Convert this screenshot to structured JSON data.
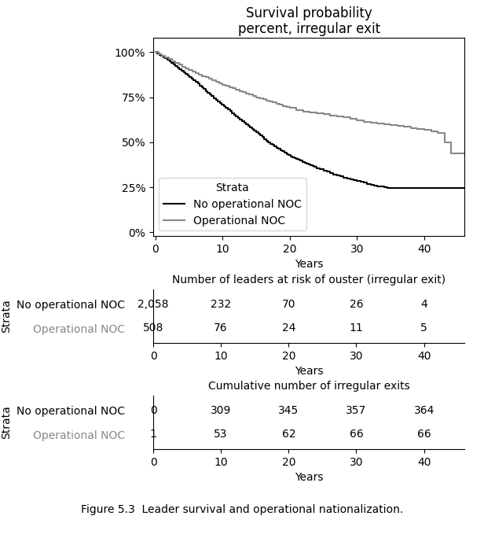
{
  "chart_data": [
    {
      "type": "step",
      "title": "Survival probability\npercent, irregular exit",
      "xlabel": "Years",
      "xlim": [
        -0.3,
        46
      ],
      "ylim": [
        -2,
        108
      ],
      "xticks": [
        0,
        10,
        20,
        30,
        40
      ],
      "yticks": [
        {
          "value": 0,
          "label": "0%"
        },
        {
          "value": 25,
          "label": "25%"
        },
        {
          "value": 50,
          "label": "50%"
        },
        {
          "value": 75,
          "label": "75%"
        },
        {
          "value": 100,
          "label": "100%"
        }
      ],
      "legend": "lower left",
      "legend_title": "Strata",
      "series": [
        {
          "name": "No operational NOC",
          "color": "#000000",
          "x": [
            0,
            0.3,
            0.6,
            0.9,
            1.2,
            1.5,
            1.8,
            2.1,
            2.4,
            2.7,
            3.0,
            3.3,
            3.6,
            3.9,
            4.2,
            4.5,
            4.8,
            5.1,
            5.4,
            5.7,
            6.0,
            6.3,
            6.6,
            6.9,
            7.2,
            7.5,
            7.8,
            8.1,
            8.4,
            8.7,
            9.0,
            9.3,
            9.6,
            9.9,
            10.2,
            10.5,
            10.8,
            11.1,
            11.4,
            11.7,
            12.0,
            12.3,
            12.6,
            12.9,
            13.2,
            13.5,
            13.8,
            14.1,
            14.4,
            14.7,
            15.0,
            15.3,
            15.6,
            15.9,
            16.2,
            16.5,
            16.8,
            17.1,
            17.4,
            17.7,
            18.0,
            18.3,
            18.6,
            18.9,
            19.2,
            19.5,
            19.8,
            20.1,
            20.4,
            20.7,
            21.0,
            21.3,
            21.6,
            21.9,
            22.2,
            22.5,
            22.8,
            23.1,
            23.4,
            23.7,
            24.0,
            24.5,
            25.0,
            25.5,
            26.0,
            26.5,
            27.0,
            27.5,
            28.0,
            28.5,
            29.0,
            29.5,
            30.0,
            30.5,
            31.0,
            31.5,
            32.0,
            32.5,
            33.0,
            33.5,
            34.0,
            34.5,
            35.0,
            36.0,
            37.0,
            38.0,
            39.0,
            40.0,
            41.0,
            42.0,
            43.0,
            44.0,
            45.0,
            46.0
          ],
          "values": [
            100,
            99.3,
            98.6,
            97.9,
            97.2,
            96.5,
            95.7,
            94.9,
            94.1,
            93.3,
            92.5,
            91.6,
            90.7,
            89.8,
            88.9,
            88.0,
            87.1,
            86.2,
            85.3,
            84.4,
            83.5,
            82.5,
            81.5,
            80.5,
            79.5,
            78.5,
            77.5,
            76.5,
            75.5,
            74.5,
            73.5,
            72.6,
            71.7,
            70.8,
            69.9,
            69.0,
            68.1,
            67.2,
            66.3,
            65.4,
            64.5,
            63.6,
            62.7,
            61.8,
            60.9,
            60.0,
            59.1,
            58.2,
            57.3,
            56.4,
            55.5,
            54.6,
            53.7,
            52.8,
            51.9,
            51.0,
            50.1,
            49.2,
            48.5,
            47.8,
            47.1,
            46.4,
            45.7,
            45.0,
            44.3,
            43.6,
            42.9,
            42.2,
            41.7,
            41.2,
            40.7,
            40.2,
            39.7,
            39.2,
            38.7,
            38.2,
            37.7,
            37.2,
            36.7,
            36.2,
            35.7,
            35.0,
            34.3,
            33.6,
            32.9,
            32.2,
            31.5,
            31.0,
            30.5,
            30.0,
            29.5,
            29.0,
            28.5,
            28.0,
            27.5,
            27.0,
            26.5,
            26.0,
            25.7,
            25.4,
            25.1,
            24.8,
            24.5,
            24.5,
            24.5,
            24.5,
            24.5,
            24.5,
            24.5,
            24.5,
            24.5,
            24.5,
            24.5,
            24.5
          ]
        },
        {
          "name": "Operational NOC",
          "color": "#888888",
          "x": [
            0,
            0.5,
            1.0,
            1.5,
            2.0,
            2.5,
            3.0,
            3.5,
            4.0,
            4.5,
            5.0,
            5.5,
            6.0,
            6.5,
            7.0,
            7.5,
            8.0,
            8.5,
            9.0,
            9.5,
            10.0,
            10.5,
            11.0,
            11.5,
            12.0,
            12.5,
            13.0,
            13.5,
            14.0,
            14.5,
            15.0,
            15.5,
            16.0,
            16.5,
            17.0,
            17.5,
            18.0,
            18.5,
            19.0,
            19.5,
            20.0,
            21.0,
            22.0,
            23.0,
            24.0,
            25.0,
            26.0,
            27.0,
            28.0,
            29.0,
            30.0,
            31.0,
            32.0,
            33.0,
            34.0,
            35.0,
            36.0,
            37.0,
            38.0,
            39.0,
            40.0,
            41.0,
            42.0,
            43.0,
            44.0,
            45.0,
            46.0
          ],
          "values": [
            100,
            99.0,
            98.0,
            97.0,
            96.0,
            95.0,
            94.0,
            93.0,
            92.0,
            91.0,
            90.0,
            89.2,
            88.4,
            87.6,
            86.8,
            86.0,
            85.2,
            84.4,
            83.6,
            82.8,
            82.0,
            81.3,
            80.6,
            79.9,
            79.2,
            78.5,
            77.8,
            77.1,
            76.4,
            75.7,
            75.0,
            74.4,
            73.8,
            73.2,
            72.6,
            72.0,
            71.4,
            70.8,
            70.2,
            69.6,
            69.0,
            68.0,
            67.0,
            66.5,
            66.0,
            65.5,
            65.0,
            64.5,
            64.0,
            63.0,
            62.0,
            61.5,
            61.0,
            60.5,
            60.0,
            59.5,
            59.0,
            58.5,
            58.0,
            57.5,
            57.0,
            56.0,
            55.0,
            50.0,
            44.0,
            44.0,
            44.0
          ]
        }
      ]
    },
    {
      "type": "table",
      "title": "Number of leaders at risk of ouster (irregular exit)",
      "xlabel": "Years",
      "ylabel": "Strata",
      "xlim": [
        0,
        46
      ],
      "xticks": [
        0,
        10,
        20,
        30,
        40
      ],
      "x": [
        0,
        10,
        20,
        30,
        40
      ],
      "series": [
        {
          "name": "No operational NOC",
          "color": "#000000",
          "values": [
            2058,
            232,
            70,
            26,
            4
          ],
          "value_labels": [
            "2,058",
            "232",
            "70",
            "26",
            "4"
          ]
        },
        {
          "name": "Operational NOC",
          "color": "#888888",
          "values": [
            508,
            76,
            24,
            11,
            5
          ]
        }
      ]
    },
    {
      "type": "table",
      "title": "Cumulative number of irregular exits",
      "xlabel": "Years",
      "ylabel": "Strata",
      "xlim": [
        0,
        46
      ],
      "xticks": [
        0,
        10,
        20,
        30,
        40
      ],
      "x": [
        0,
        10,
        20,
        30,
        40
      ],
      "series": [
        {
          "name": "No operational NOC",
          "color": "#000000",
          "values": [
            0,
            309,
            345,
            357,
            364
          ]
        },
        {
          "name": "Operational NOC",
          "color": "#888888",
          "values": [
            1,
            53,
            62,
            66,
            66
          ]
        }
      ]
    }
  ],
  "caption": "Figure 5.3  Leader survival and operational nationalization."
}
